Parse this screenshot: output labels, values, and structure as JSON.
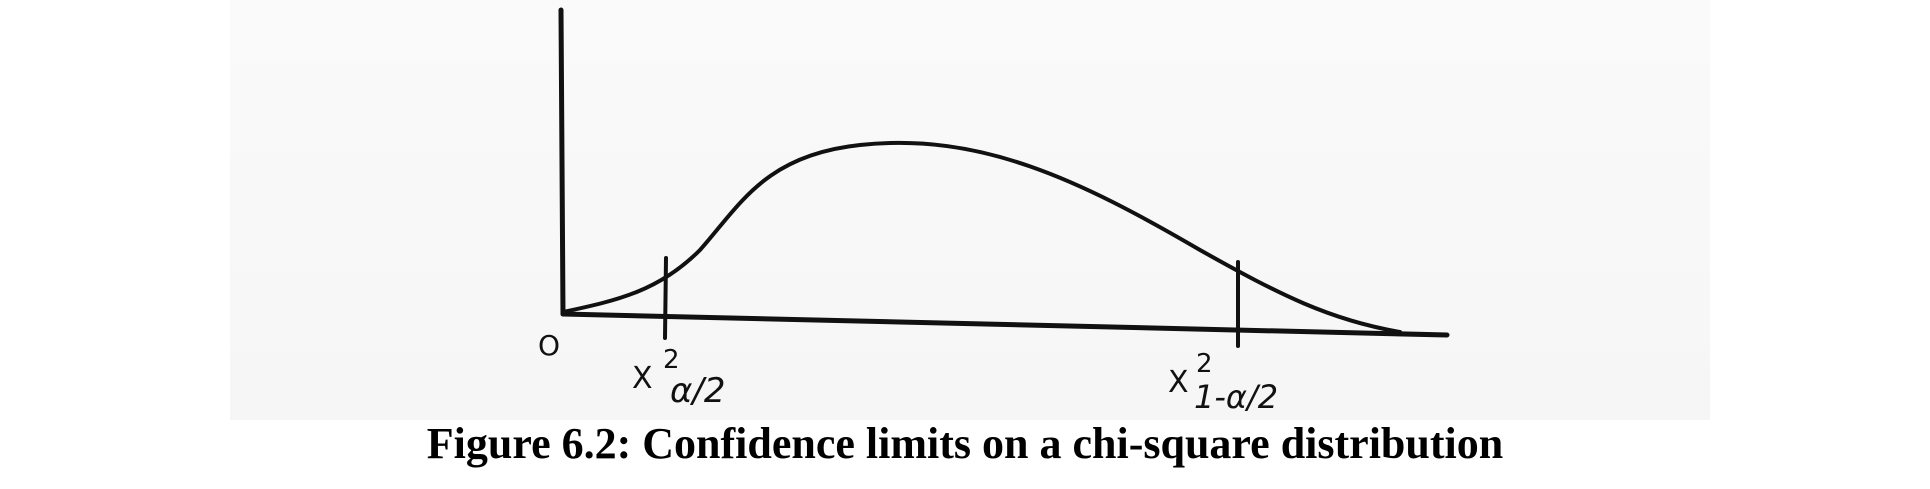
{
  "diagram": {
    "origin_label": "O",
    "lower_limit": {
      "symbol": "X",
      "superscript": "2",
      "subscript": "α/2"
    },
    "upper_limit": {
      "symbol": "X",
      "superscript": "2",
      "subscript": "1-α/2"
    }
  },
  "caption": "Figure 6.2: Confidence limits on a chi-square distribution",
  "colors": {
    "ink": "#111111",
    "caption": "#000000"
  }
}
